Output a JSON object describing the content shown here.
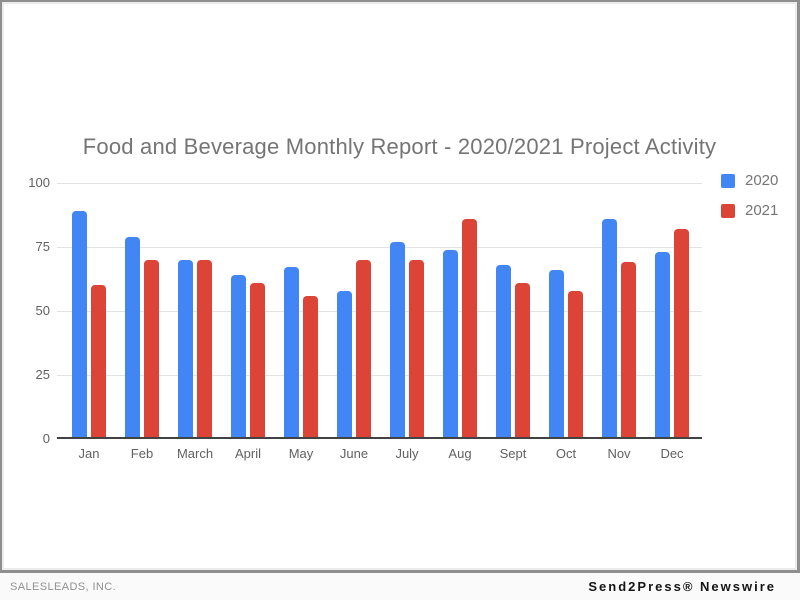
{
  "chart_data": {
    "type": "bar",
    "title": "Food and Beverage Monthly Report - 2020/2021 Project Activity",
    "categories": [
      "Jan",
      "Feb",
      "March",
      "April",
      "May",
      "June",
      "July",
      "Aug",
      "Sept",
      "Oct",
      "Nov",
      "Dec"
    ],
    "series": [
      {
        "name": "2020",
        "color": "#4285f4",
        "values": [
          89,
          79,
          70,
          64,
          67,
          58,
          77,
          74,
          68,
          66,
          86,
          73
        ]
      },
      {
        "name": "2021",
        "color": "#db4437",
        "values": [
          60,
          70,
          70,
          61,
          56,
          70,
          70,
          86,
          61,
          58,
          69,
          82
        ]
      }
    ],
    "xlabel": "",
    "ylabel": "",
    "ylim": [
      0,
      100
    ],
    "yticks": [
      0,
      25,
      50,
      75,
      100
    ],
    "grid": true,
    "legend_position": "top-right",
    "gridline_color": "#e3e3e3",
    "axis_line_color": "#424242",
    "title_color": "#757575",
    "tick_label_color": "#616161"
  },
  "footer": {
    "left_text": "SALESLEADS, INC.",
    "right_text": "Send2Press® Newswire"
  }
}
